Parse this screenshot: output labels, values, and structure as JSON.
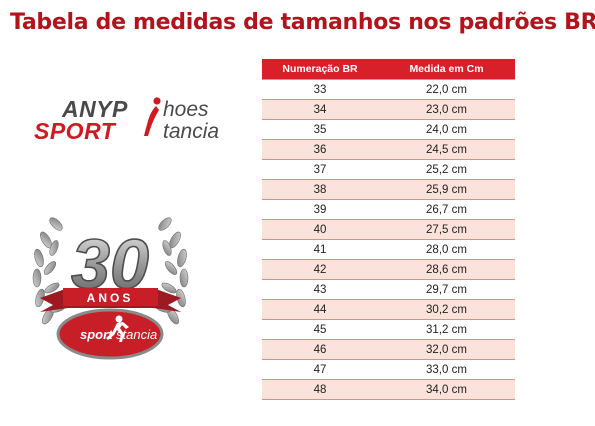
{
  "title": "Tabela de medidas de tamanhos nos padrões BR:",
  "logo": {
    "word1": "ANYP",
    "word1_suffix": "hoes",
    "word2": "SPORT",
    "word2_suffix": "tancia",
    "badge_number": "30",
    "badge_ribbon": "ANOS",
    "badge_brand_prefix": "sport",
    "badge_brand_suffix": "stancia"
  },
  "table": {
    "headers": [
      "Numeração BR",
      "Medida em Cm"
    ],
    "rows": [
      [
        "33",
        "22,0 cm"
      ],
      [
        "34",
        "23,0 cm"
      ],
      [
        "35",
        "24,0 cm"
      ],
      [
        "36",
        "24,5 cm"
      ],
      [
        "37",
        "25,2 cm"
      ],
      [
        "38",
        "25,9 cm"
      ],
      [
        "39",
        "26,7 cm"
      ],
      [
        "40",
        "27,5 cm"
      ],
      [
        "41",
        "28,0 cm"
      ],
      [
        "42",
        "28,6 cm"
      ],
      [
        "43",
        "29,7 cm"
      ],
      [
        "44",
        "30,2 cm"
      ],
      [
        "45",
        "31,2 cm"
      ],
      [
        "46",
        "32,0 cm"
      ],
      [
        "47",
        "33,0 cm"
      ],
      [
        "48",
        "34,0 cm"
      ]
    ]
  },
  "colors": {
    "title": "#b3141b",
    "header_bg": "#d8202a",
    "alt_row_bg": "#fbe2da",
    "row_border": "#e58a86"
  }
}
